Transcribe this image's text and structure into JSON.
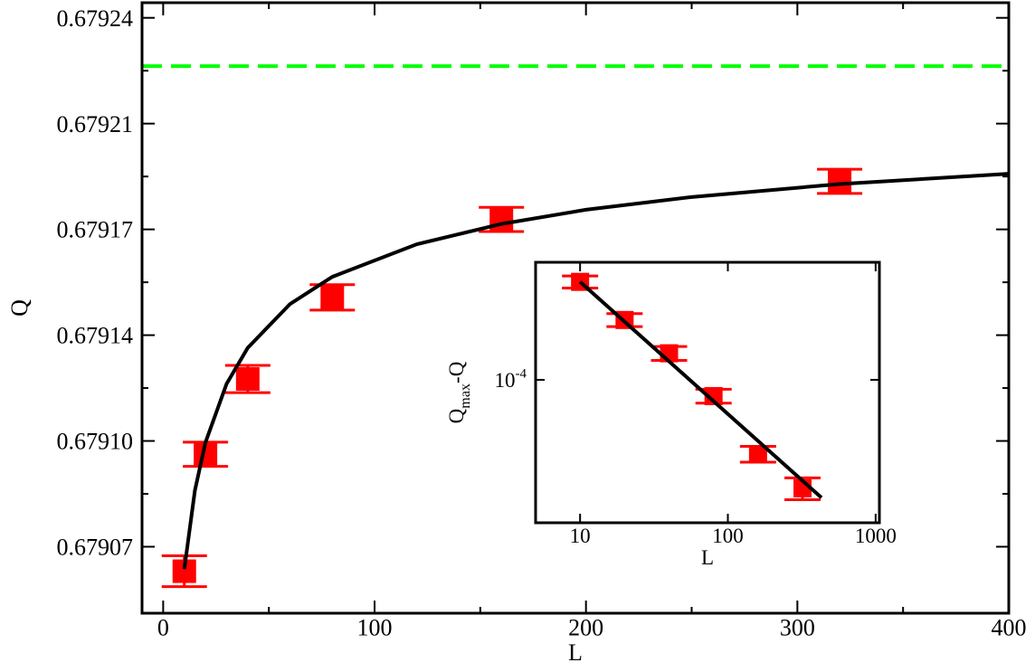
{
  "chart_data": [
    {
      "type": "scatter",
      "xlabel": "L",
      "ylabel": "Q",
      "xlim": [
        -10,
        400
      ],
      "ylim": [
        0.679048,
        0.67925
      ],
      "xticks": [
        0,
        100,
        200,
        300,
        400
      ],
      "yticks": [
        0.67907,
        {
          "value": 0.679105,
          "label": "0.67910"
        },
        0.67914,
        {
          "value": 0.679175,
          "label": "0.67917"
        },
        0.67921,
        {
          "value": 0.679245,
          "label": "0.67924"
        }
      ],
      "hline": {
        "value": 0.679229,
        "color": "#00ff00",
        "style": "dashed"
      },
      "series": [
        {
          "x": [
            10,
            20,
            40,
            80,
            160,
            320
          ],
          "values": [
            0.6790619,
            0.6791006,
            0.6791255,
            0.6791525,
            0.6791783,
            0.6791909
          ],
          "errors": [
            5.1e-06,
            4e-06,
            4.5e-06,
            4.2e-06,
            4e-06,
            4e-06
          ],
          "color": "#ff0000",
          "marker": "square"
        },
        {
          "x": [
            10,
            15,
            20,
            30,
            40,
            60,
            80,
            120,
            160,
            200,
            250,
            320,
            400
          ],
          "values": [
            0.6790626,
            0.6790886,
            0.6791045,
            0.6791239,
            0.6791358,
            0.6791503,
            0.6791593,
            0.6791701,
            0.6791768,
            0.6791815,
            0.6791857,
            0.67919,
            0.6791934
          ],
          "color": "#000000",
          "marker": "line"
        }
      ]
    },
    {
      "type": "scatter",
      "xlabel": "L",
      "ylabel": "Q",
      "ylabel_sub": "max",
      "ylabel_suffix": "-Q",
      "xscale": "log",
      "yscale": "log",
      "xlim": [
        5,
        1060
      ],
      "ylim": [
        3.92e-05,
        0.000216
      ],
      "xticks": [
        10,
        100,
        1000
      ],
      "yticks": [
        {
          "value": 0.0001,
          "label": "10",
          "label_sup": "-4"
        }
      ],
      "series": [
        {
          "x": [
            10,
            20,
            40,
            80,
            160,
            320
          ],
          "values": [
            0.00019,
            0.000148,
            0.000119,
            8.99e-05,
            6.15e-05,
            4.91e-05
          ],
          "errors": [
            7.5e-06,
            6.3e-06,
            5.4e-06,
            4.1e-06,
            3.2e-06,
            3.5e-06
          ],
          "color": "#ff0000",
          "marker": "square"
        },
        {
          "x": [
            10,
            430
          ],
          "values": [
            0.00019,
            4.62e-05
          ],
          "color": "#000000",
          "marker": "line"
        }
      ]
    }
  ]
}
